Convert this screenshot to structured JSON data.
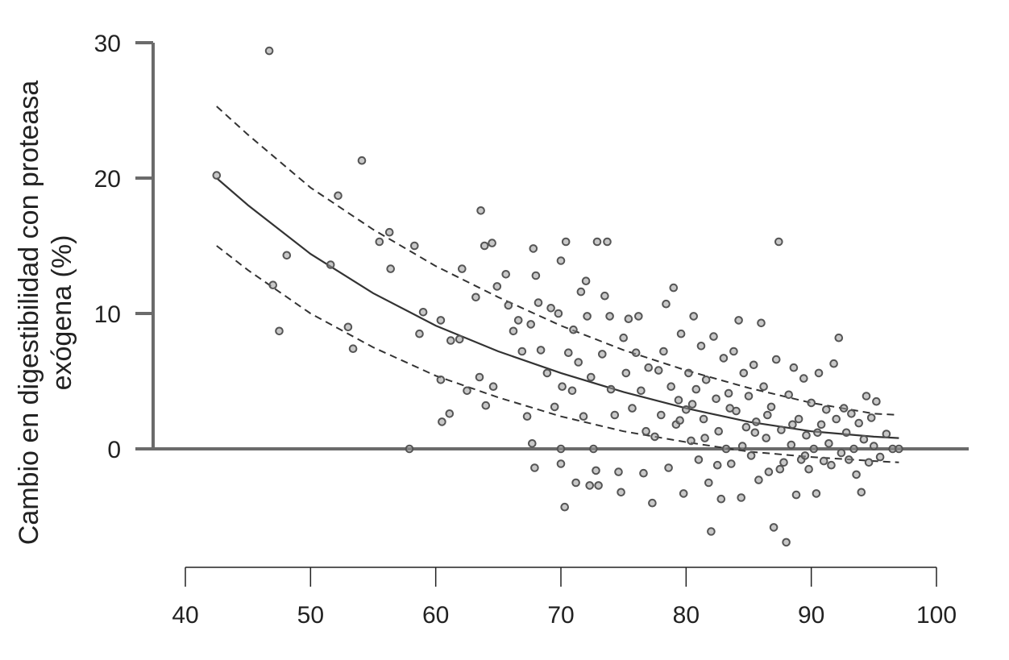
{
  "chart_data": {
    "type": "scatter",
    "title": "",
    "xlabel": "",
    "ylabel_lines": [
      "Cambio en digestibilidad con proteasa",
      "exógena (%)"
    ],
    "xlim": [
      40,
      100
    ],
    "ylim": [
      -7,
      30
    ],
    "x_ticks": [
      "40",
      "50",
      "60",
      "70",
      "80",
      "90",
      "100"
    ],
    "y_ticks": [
      "0",
      "10",
      "20",
      "30"
    ],
    "grid": false,
    "marker_color": "#555555",
    "line_color": "#333333",
    "fit": {
      "x": [
        42.5,
        45,
        50,
        55,
        60,
        65,
        70,
        75,
        80,
        85,
        90,
        95,
        97
      ],
      "y": [
        20.0,
        18.0,
        14.4,
        11.5,
        9.1,
        7.2,
        5.6,
        4.2,
        3.0,
        2.0,
        1.3,
        0.9,
        0.8
      ]
    },
    "upper_band": {
      "x": [
        42.5,
        45,
        50,
        55,
        60,
        65,
        70,
        75,
        80,
        85,
        90,
        95,
        97
      ],
      "y": [
        25.3,
        23.2,
        19.3,
        16.2,
        13.5,
        11.2,
        9.1,
        7.3,
        5.8,
        4.5,
        3.4,
        2.6,
        2.5
      ]
    },
    "lower_band": {
      "x": [
        42.5,
        45,
        50,
        55,
        60,
        65,
        70,
        75,
        80,
        85,
        90,
        95,
        97
      ],
      "y": [
        15.0,
        13.2,
        10.0,
        7.5,
        5.4,
        3.8,
        2.4,
        1.3,
        0.5,
        -0.2,
        -0.6,
        -0.9,
        -1.0
      ]
    },
    "points": [
      [
        42.5,
        20.2
      ],
      [
        46.7,
        29.4
      ],
      [
        47.0,
        12.1
      ],
      [
        47.5,
        8.7
      ],
      [
        48.1,
        14.3
      ],
      [
        51.6,
        13.6
      ],
      [
        52.2,
        18.7
      ],
      [
        53.0,
        9.0
      ],
      [
        53.4,
        7.4
      ],
      [
        54.1,
        21.3
      ],
      [
        55.5,
        15.3
      ],
      [
        56.3,
        16.0
      ],
      [
        56.4,
        13.3
      ],
      [
        57.9,
        0.0
      ],
      [
        58.3,
        15.0
      ],
      [
        58.7,
        8.5
      ],
      [
        59.0,
        10.1
      ],
      [
        60.4,
        9.5
      ],
      [
        60.4,
        5.1
      ],
      [
        60.5,
        2.0
      ],
      [
        61.1,
        2.6
      ],
      [
        61.2,
        8.0
      ],
      [
        61.9,
        8.1
      ],
      [
        62.1,
        13.3
      ],
      [
        62.5,
        4.3
      ],
      [
        63.2,
        11.2
      ],
      [
        63.5,
        5.3
      ],
      [
        63.6,
        17.6
      ],
      [
        63.9,
        15.0
      ],
      [
        64.0,
        3.2
      ],
      [
        64.5,
        15.2
      ],
      [
        64.6,
        4.6
      ],
      [
        64.9,
        12.0
      ],
      [
        65.6,
        12.9
      ],
      [
        65.8,
        10.6
      ],
      [
        66.2,
        8.7
      ],
      [
        66.6,
        9.5
      ],
      [
        66.9,
        7.2
      ],
      [
        67.3,
        2.4
      ],
      [
        67.6,
        9.2
      ],
      [
        67.7,
        0.4
      ],
      [
        67.8,
        14.8
      ],
      [
        67.9,
        -1.4
      ],
      [
        68.0,
        12.8
      ],
      [
        68.2,
        10.8
      ],
      [
        68.4,
        7.3
      ],
      [
        68.9,
        5.6
      ],
      [
        69.2,
        10.4
      ],
      [
        69.5,
        3.1
      ],
      [
        69.8,
        10.0
      ],
      [
        70.0,
        13.9
      ],
      [
        70.0,
        -1.1
      ],
      [
        70.0,
        0.0
      ],
      [
        70.1,
        4.6
      ],
      [
        70.3,
        -4.3
      ],
      [
        70.4,
        15.3
      ],
      [
        70.6,
        7.1
      ],
      [
        70.9,
        4.3
      ],
      [
        71.0,
        8.8
      ],
      [
        71.2,
        -2.5
      ],
      [
        71.4,
        6.4
      ],
      [
        71.6,
        11.6
      ],
      [
        71.8,
        2.4
      ],
      [
        72.0,
        12.4
      ],
      [
        72.1,
        9.8
      ],
      [
        72.3,
        -2.7
      ],
      [
        72.4,
        5.3
      ],
      [
        72.6,
        0.0
      ],
      [
        72.8,
        -1.6
      ],
      [
        72.9,
        15.3
      ],
      [
        73.0,
        -2.7
      ],
      [
        73.3,
        7.0
      ],
      [
        73.5,
        11.3
      ],
      [
        73.7,
        15.3
      ],
      [
        73.9,
        9.8
      ],
      [
        74.0,
        4.4
      ],
      [
        74.3,
        2.5
      ],
      [
        74.6,
        -1.7
      ],
      [
        74.8,
        -3.2
      ],
      [
        75.0,
        8.2
      ],
      [
        75.2,
        5.6
      ],
      [
        75.4,
        9.6
      ],
      [
        75.7,
        3.0
      ],
      [
        76.0,
        7.1
      ],
      [
        76.2,
        9.8
      ],
      [
        76.4,
        4.3
      ],
      [
        76.6,
        -1.8
      ],
      [
        76.8,
        1.3
      ],
      [
        77.0,
        6.0
      ],
      [
        77.3,
        -4.0
      ],
      [
        77.5,
        0.9
      ],
      [
        77.8,
        5.8
      ],
      [
        78.0,
        2.5
      ],
      [
        78.2,
        7.2
      ],
      [
        78.4,
        10.7
      ],
      [
        78.6,
        -1.4
      ],
      [
        78.8,
        4.6
      ],
      [
        79.0,
        11.9
      ],
      [
        79.2,
        1.8
      ],
      [
        79.4,
        3.6
      ],
      [
        79.6,
        8.5
      ],
      [
        79.8,
        -3.3
      ],
      [
        80.0,
        2.9
      ],
      [
        80.2,
        5.6
      ],
      [
        80.4,
        0.6
      ],
      [
        80.6,
        9.8
      ],
      [
        80.8,
        4.4
      ],
      [
        81.0,
        -0.8
      ],
      [
        81.2,
        7.6
      ],
      [
        81.4,
        2.2
      ],
      [
        81.6,
        5.1
      ],
      [
        81.8,
        -2.5
      ],
      [
        82.0,
        -6.1
      ],
      [
        82.2,
        8.3
      ],
      [
        82.4,
        3.7
      ],
      [
        82.6,
        1.3
      ],
      [
        82.8,
        -3.7
      ],
      [
        83.0,
        6.7
      ],
      [
        83.2,
        0.0
      ],
      [
        83.4,
        4.1
      ],
      [
        83.6,
        -1.1
      ],
      [
        83.8,
        7.2
      ],
      [
        84.0,
        2.8
      ],
      [
        84.2,
        9.5
      ],
      [
        84.4,
        -3.6
      ],
      [
        84.6,
        5.6
      ],
      [
        84.8,
        1.6
      ],
      [
        85.0,
        3.9
      ],
      [
        85.2,
        -0.5
      ],
      [
        85.4,
        6.2
      ],
      [
        85.6,
        2.0
      ],
      [
        85.8,
        -2.3
      ],
      [
        86.0,
        9.3
      ],
      [
        86.2,
        4.6
      ],
      [
        86.4,
        0.8
      ],
      [
        86.6,
        -1.7
      ],
      [
        86.8,
        3.1
      ],
      [
        87.0,
        -5.8
      ],
      [
        87.2,
        6.6
      ],
      [
        87.4,
        15.3
      ],
      [
        87.6,
        1.4
      ],
      [
        87.8,
        -1.0
      ],
      [
        88.0,
        -6.9
      ],
      [
        88.2,
        4.0
      ],
      [
        88.4,
        0.3
      ],
      [
        88.6,
        6.0
      ],
      [
        88.8,
        -3.4
      ],
      [
        89.0,
        2.2
      ],
      [
        89.2,
        -0.8
      ],
      [
        89.4,
        5.2
      ],
      [
        89.6,
        1.0
      ],
      [
        89.8,
        -1.5
      ],
      [
        90.0,
        3.4
      ],
      [
        90.2,
        0.0
      ],
      [
        90.4,
        -3.3
      ],
      [
        90.6,
        5.6
      ],
      [
        90.8,
        1.8
      ],
      [
        91.0,
        -0.9
      ],
      [
        91.2,
        2.9
      ],
      [
        91.4,
        0.4
      ],
      [
        91.6,
        -1.2
      ],
      [
        91.8,
        6.3
      ],
      [
        92.0,
        2.2
      ],
      [
        92.2,
        8.2
      ],
      [
        92.4,
        -0.3
      ],
      [
        92.6,
        3.0
      ],
      [
        92.8,
        1.2
      ],
      [
        93.0,
        -0.8
      ],
      [
        93.2,
        2.6
      ],
      [
        93.4,
        0.0
      ],
      [
        93.6,
        -1.9
      ],
      [
        93.8,
        1.9
      ],
      [
        94.0,
        -3.2
      ],
      [
        94.2,
        0.7
      ],
      [
        94.4,
        3.9
      ],
      [
        94.6,
        -1.0
      ],
      [
        94.8,
        2.3
      ],
      [
        95.0,
        0.2
      ],
      [
        95.2,
        3.5
      ],
      [
        95.5,
        -0.6
      ],
      [
        96.0,
        1.1
      ],
      [
        96.5,
        0.0
      ],
      [
        97.0,
        0.0
      ],
      [
        83.5,
        3.0
      ],
      [
        85.5,
        1.2
      ],
      [
        86.5,
        2.5
      ],
      [
        87.5,
        -1.5
      ],
      [
        88.5,
        1.8
      ],
      [
        89.5,
        -0.5
      ],
      [
        90.5,
        1.2
      ],
      [
        84.5,
        0.2
      ],
      [
        81.5,
        0.8
      ],
      [
        80.5,
        3.3
      ],
      [
        79.5,
        2.1
      ],
      [
        82.5,
        -1.2
      ]
    ]
  }
}
